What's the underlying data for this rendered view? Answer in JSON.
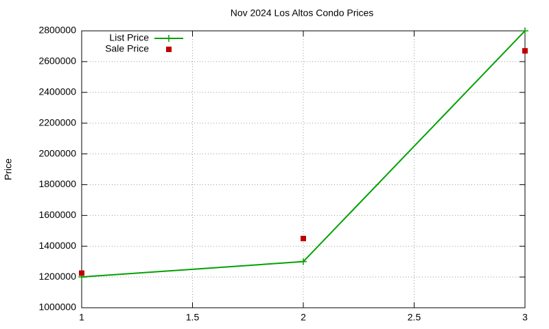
{
  "chart_data": {
    "type": "line",
    "title": "Nov 2024 Los Altos Condo Prices",
    "y_label": "Price",
    "x": [
      1,
      2,
      3
    ],
    "series": [
      {
        "name": "List Price",
        "color": "#00a000",
        "style": "linespoints",
        "values": [
          1200000,
          1300000,
          2800000
        ]
      },
      {
        "name": "Sale Price",
        "color": "#c00000",
        "style": "points",
        "values": [
          1225000,
          1450000,
          2670000
        ]
      }
    ],
    "xlim": [
      1,
      3
    ],
    "xticks": [
      1,
      1.5,
      2,
      2.5,
      3
    ],
    "ylim": [
      1000000,
      2800000
    ],
    "yticks": [
      1000000,
      1200000,
      1400000,
      1600000,
      1800000,
      2000000,
      2200000,
      2400000,
      2600000,
      2800000
    ],
    "grid": true,
    "legend": "top-left"
  }
}
